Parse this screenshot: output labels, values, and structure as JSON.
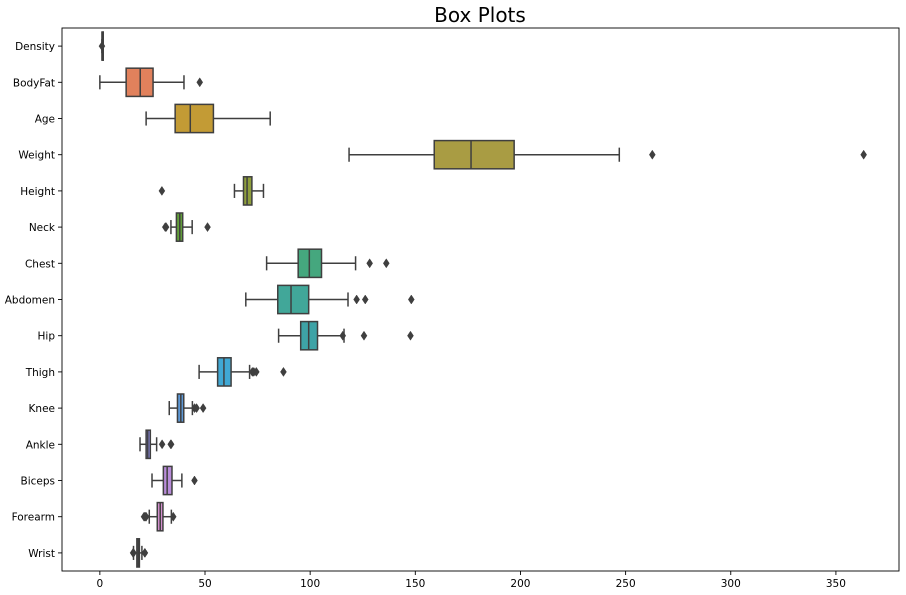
{
  "chart_data": {
    "type": "box",
    "title": "Box Plots",
    "xlabel": "",
    "ylabel": "",
    "xlim": [
      -18,
      380
    ],
    "xticks": [
      0,
      50,
      100,
      150,
      200,
      250,
      300,
      350
    ],
    "xtick_labels": [
      "0",
      "50",
      "100",
      "150",
      "200",
      "250",
      "300",
      "350"
    ],
    "grid": false,
    "orientation": "horizontal",
    "boxes": [
      {
        "category": "Density",
        "color": "#3274a1",
        "whisker_low": 1.0,
        "q1": 1.04,
        "median": 1.05,
        "q3": 1.07,
        "whisker_high": 1.1,
        "outliers": [
          0.995
        ]
      },
      {
        "category": "BodyFat",
        "color": "#e1815c",
        "whisker_low": 0,
        "q1": 12.5,
        "median": 19.2,
        "q3": 25.3,
        "whisker_high": 40,
        "outliers": [
          47.5
        ]
      },
      {
        "category": "Age",
        "color": "#c39b35",
        "whisker_low": 22,
        "q1": 35.8,
        "median": 43,
        "q3": 54,
        "whisker_high": 81,
        "outliers": []
      },
      {
        "category": "Weight",
        "color": "#a99c43",
        "whisker_low": 118.5,
        "q1": 159,
        "median": 176.5,
        "q3": 197,
        "whisker_high": 247,
        "outliers": [
          262.7,
          363.2
        ]
      },
      {
        "category": "Height",
        "color": "#8e9e3c",
        "whisker_low": 64,
        "q1": 68.3,
        "median": 70,
        "q3": 72.3,
        "whisker_high": 77.8,
        "outliers": [
          29.5
        ]
      },
      {
        "category": "Neck",
        "color": "#629f3a",
        "whisker_low": 33.8,
        "q1": 36.4,
        "median": 38,
        "q3": 39.4,
        "whisker_high": 43.9,
        "outliers": [
          31.1,
          31.5,
          51.2
        ]
      },
      {
        "category": "Chest",
        "color": "#45a77e",
        "whisker_low": 79.3,
        "q1": 94.3,
        "median": 99.6,
        "q3": 105.4,
        "whisker_high": 121.6,
        "outliers": [
          128.3,
          136.2
        ]
      },
      {
        "category": "Abdomen",
        "color": "#41a799",
        "whisker_low": 69.4,
        "q1": 84.6,
        "median": 90.9,
        "q3": 99.3,
        "whisker_high": 118,
        "outliers": [
          122.1,
          126.2,
          148.1
        ]
      },
      {
        "category": "Hip",
        "color": "#3ea3a6",
        "whisker_low": 85,
        "q1": 95.5,
        "median": 99.3,
        "q3": 103.5,
        "whisker_high": 116.1,
        "outliers": [
          115.5,
          125.6,
          147.7
        ]
      },
      {
        "category": "Thigh",
        "color": "#40a8d4",
        "whisker_low": 47.2,
        "q1": 56,
        "median": 59,
        "q3": 62.4,
        "whisker_high": 71.2,
        "outliers": [
          72.5,
          73.2,
          74.4,
          87.3
        ]
      },
      {
        "category": "Knee",
        "color": "#5d98d6",
        "whisker_low": 33,
        "q1": 36.9,
        "median": 38.5,
        "q3": 39.9,
        "whisker_high": 44,
        "outliers": [
          45,
          46,
          49.1
        ]
      },
      {
        "category": "Ankle",
        "color": "#8c8be2",
        "whisker_low": 19.1,
        "q1": 22,
        "median": 22.8,
        "q3": 24,
        "whisker_high": 27,
        "outliers": [
          29.6,
          33.7,
          33.9
        ]
      },
      {
        "category": "Biceps",
        "color": "#b88cd9",
        "whisker_low": 24.8,
        "q1": 30.2,
        "median": 32,
        "q3": 34.3,
        "whisker_high": 39,
        "outliers": [
          45
        ]
      },
      {
        "category": "Forearm",
        "color": "#d48fcf",
        "whisker_low": 23.5,
        "q1": 27.3,
        "median": 28.7,
        "q3": 30,
        "whisker_high": 34,
        "outliers": [
          21,
          21.5,
          22,
          34.9
        ]
      },
      {
        "category": "Wrist",
        "color": "#7f7f7f",
        "whisker_low": 16,
        "q1": 17.6,
        "median": 18.3,
        "q3": 18.8,
        "whisker_high": 20,
        "outliers": [
          15.8,
          16.0,
          21.4,
          21.4
        ]
      }
    ]
  }
}
